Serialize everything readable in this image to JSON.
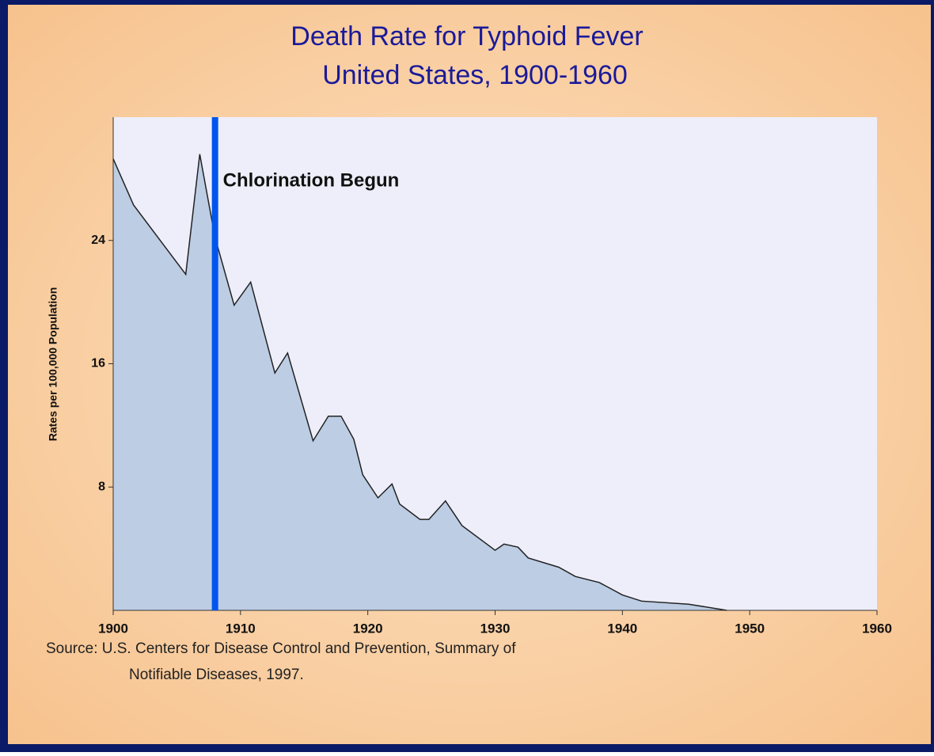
{
  "chart_data": {
    "type": "area",
    "title": [
      "Death Rate for Typhoid Fever",
      "United States, 1900-1960"
    ],
    "y_label": "Rates per 100,000 Population",
    "x": [
      1900,
      1901.6,
      1905.7,
      1906.8,
      1908,
      1909.5,
      1910.8,
      1912.7,
      1913.7,
      1915.7,
      1916.9,
      1917.9,
      1918.9,
      1919.6,
      1920.8,
      1921.9,
      1922.5,
      1924.1,
      1924.8,
      1926.1,
      1927.4,
      1930,
      1930.7,
      1931.8,
      1932.6,
      1935,
      1936.3,
      1938.2,
      1940,
      1941.5,
      1945.2,
      1948.2
    ],
    "series": [
      {
        "color": "#222222",
        "fill": "#bccde4",
        "values": [
          29.3,
          26.3,
          21.8,
          29.6,
          24.2,
          19.8,
          21.3,
          15.4,
          16.7,
          11.0,
          12.6,
          12.6,
          11.1,
          8.8,
          7.3,
          8.2,
          6.9,
          5.9,
          5.9,
          7.1,
          5.5,
          3.9,
          4.3,
          4.1,
          3.4,
          2.8,
          2.2,
          1.8,
          1.0,
          0.6,
          0.4,
          0
        ]
      }
    ],
    "annotation": {
      "text": "Chlorination Begun",
      "x": 1908,
      "color": "#0055ee"
    },
    "xlim": [
      1900,
      1960
    ],
    "xticks": [
      1900,
      1910,
      1920,
      1930,
      1940,
      1950,
      1960
    ],
    "ylim": [
      0,
      32
    ],
    "yticks": [
      8,
      16,
      24
    ],
    "source": [
      "Source: U.S. Centers for Disease Control and Prevention, Summary of",
      "Notifiable Diseases, 1997."
    ]
  }
}
